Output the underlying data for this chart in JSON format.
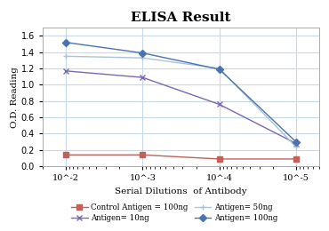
{
  "title": "ELISA Result",
  "xlabel": "Serial Dilutions  of Antibody",
  "ylabel": "O.D. Reading",
  "x_values": [
    0.01,
    0.001,
    0.0001,
    1e-05
  ],
  "x_labels": [
    "10^-2",
    "10^-3",
    "10^-4",
    "10^-5"
  ],
  "series": [
    {
      "label": "Control Antigen = 100ng",
      "color": "#c0625a",
      "marker": "s",
      "markersize": 4,
      "values": [
        0.14,
        0.14,
        0.09,
        0.09
      ]
    },
    {
      "label": "Antigen= 10ng",
      "color": "#7b68b0",
      "marker": "x",
      "markersize": 5,
      "values": [
        1.17,
        1.09,
        0.76,
        0.28
      ]
    },
    {
      "label": "Antigen= 50ng",
      "color": "#a8c4d8",
      "marker": "+",
      "markersize": 5,
      "values": [
        1.35,
        1.33,
        1.2,
        0.24
      ]
    },
    {
      "label": "Antigen= 100ng",
      "color": "#4a72b0",
      "marker": "D",
      "markersize": 4,
      "values": [
        1.52,
        1.39,
        1.19,
        0.3
      ]
    }
  ],
  "ylim": [
    0,
    1.7
  ],
  "yticks": [
    0,
    0.2,
    0.4,
    0.6,
    0.8,
    1.0,
    1.2,
    1.4,
    1.6
  ],
  "background_color": "#ffffff",
  "plot_bg_color": "#ffffff",
  "grid_color": "#c8d8e8",
  "title_fontsize": 11,
  "label_fontsize": 7.5,
  "tick_fontsize": 7,
  "legend_fontsize": 6.2
}
